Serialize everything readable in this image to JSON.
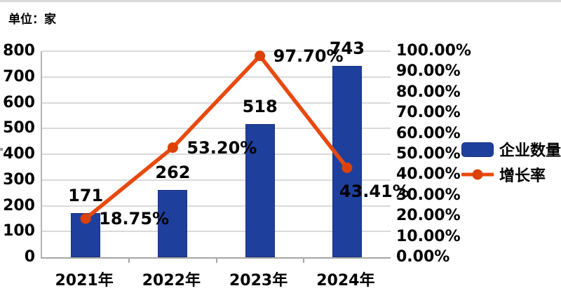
{
  "unit_label": "单位：家",
  "colors": {
    "bar": "#1F3F9C",
    "bar_border": "#18347F",
    "line": "#E8490E",
    "marker": "#DC4207",
    "grid": "#DADADA",
    "axis": "#A6A6A6",
    "text": "#000000"
  },
  "chart_data": {
    "type": "combo",
    "categories": [
      "2021年",
      "2022年",
      "2023年",
      "2024年"
    ],
    "series": [
      {
        "name": "企业数量",
        "type": "bar",
        "axis": "left",
        "color": "#1F3F9C",
        "values": [
          171,
          262,
          518,
          743
        ],
        "labels": [
          "171",
          "262",
          "518",
          "743"
        ]
      },
      {
        "name": "增长率",
        "type": "line",
        "axis": "right",
        "color": "#E8490E",
        "marker_color": "#DC4207",
        "values": [
          18.75,
          53.2,
          97.7,
          43.41
        ],
        "labels": [
          "18.75%",
          "53.20%",
          "97.70%",
          "43.41%"
        ]
      }
    ],
    "left_axis": {
      "min": 0,
      "max": 800,
      "step": 100,
      "ticks": [
        "0",
        "100",
        "200",
        "300",
        "400",
        "500",
        "600",
        "700",
        "800"
      ]
    },
    "right_axis": {
      "min": 0,
      "max": 100,
      "step": 10,
      "ticks": [
        "0.00%",
        "10.00%",
        "20.00%",
        "30.00%",
        "40.00%",
        "50.00%",
        "60.00%",
        "70.00%",
        "80.00%",
        "90.00%",
        "100.00%"
      ]
    },
    "grid": true,
    "legend_position": "right",
    "legend": [
      {
        "label": "企业数量",
        "swatch": "bar"
      },
      {
        "label": "增长率",
        "swatch": "line"
      }
    ]
  }
}
